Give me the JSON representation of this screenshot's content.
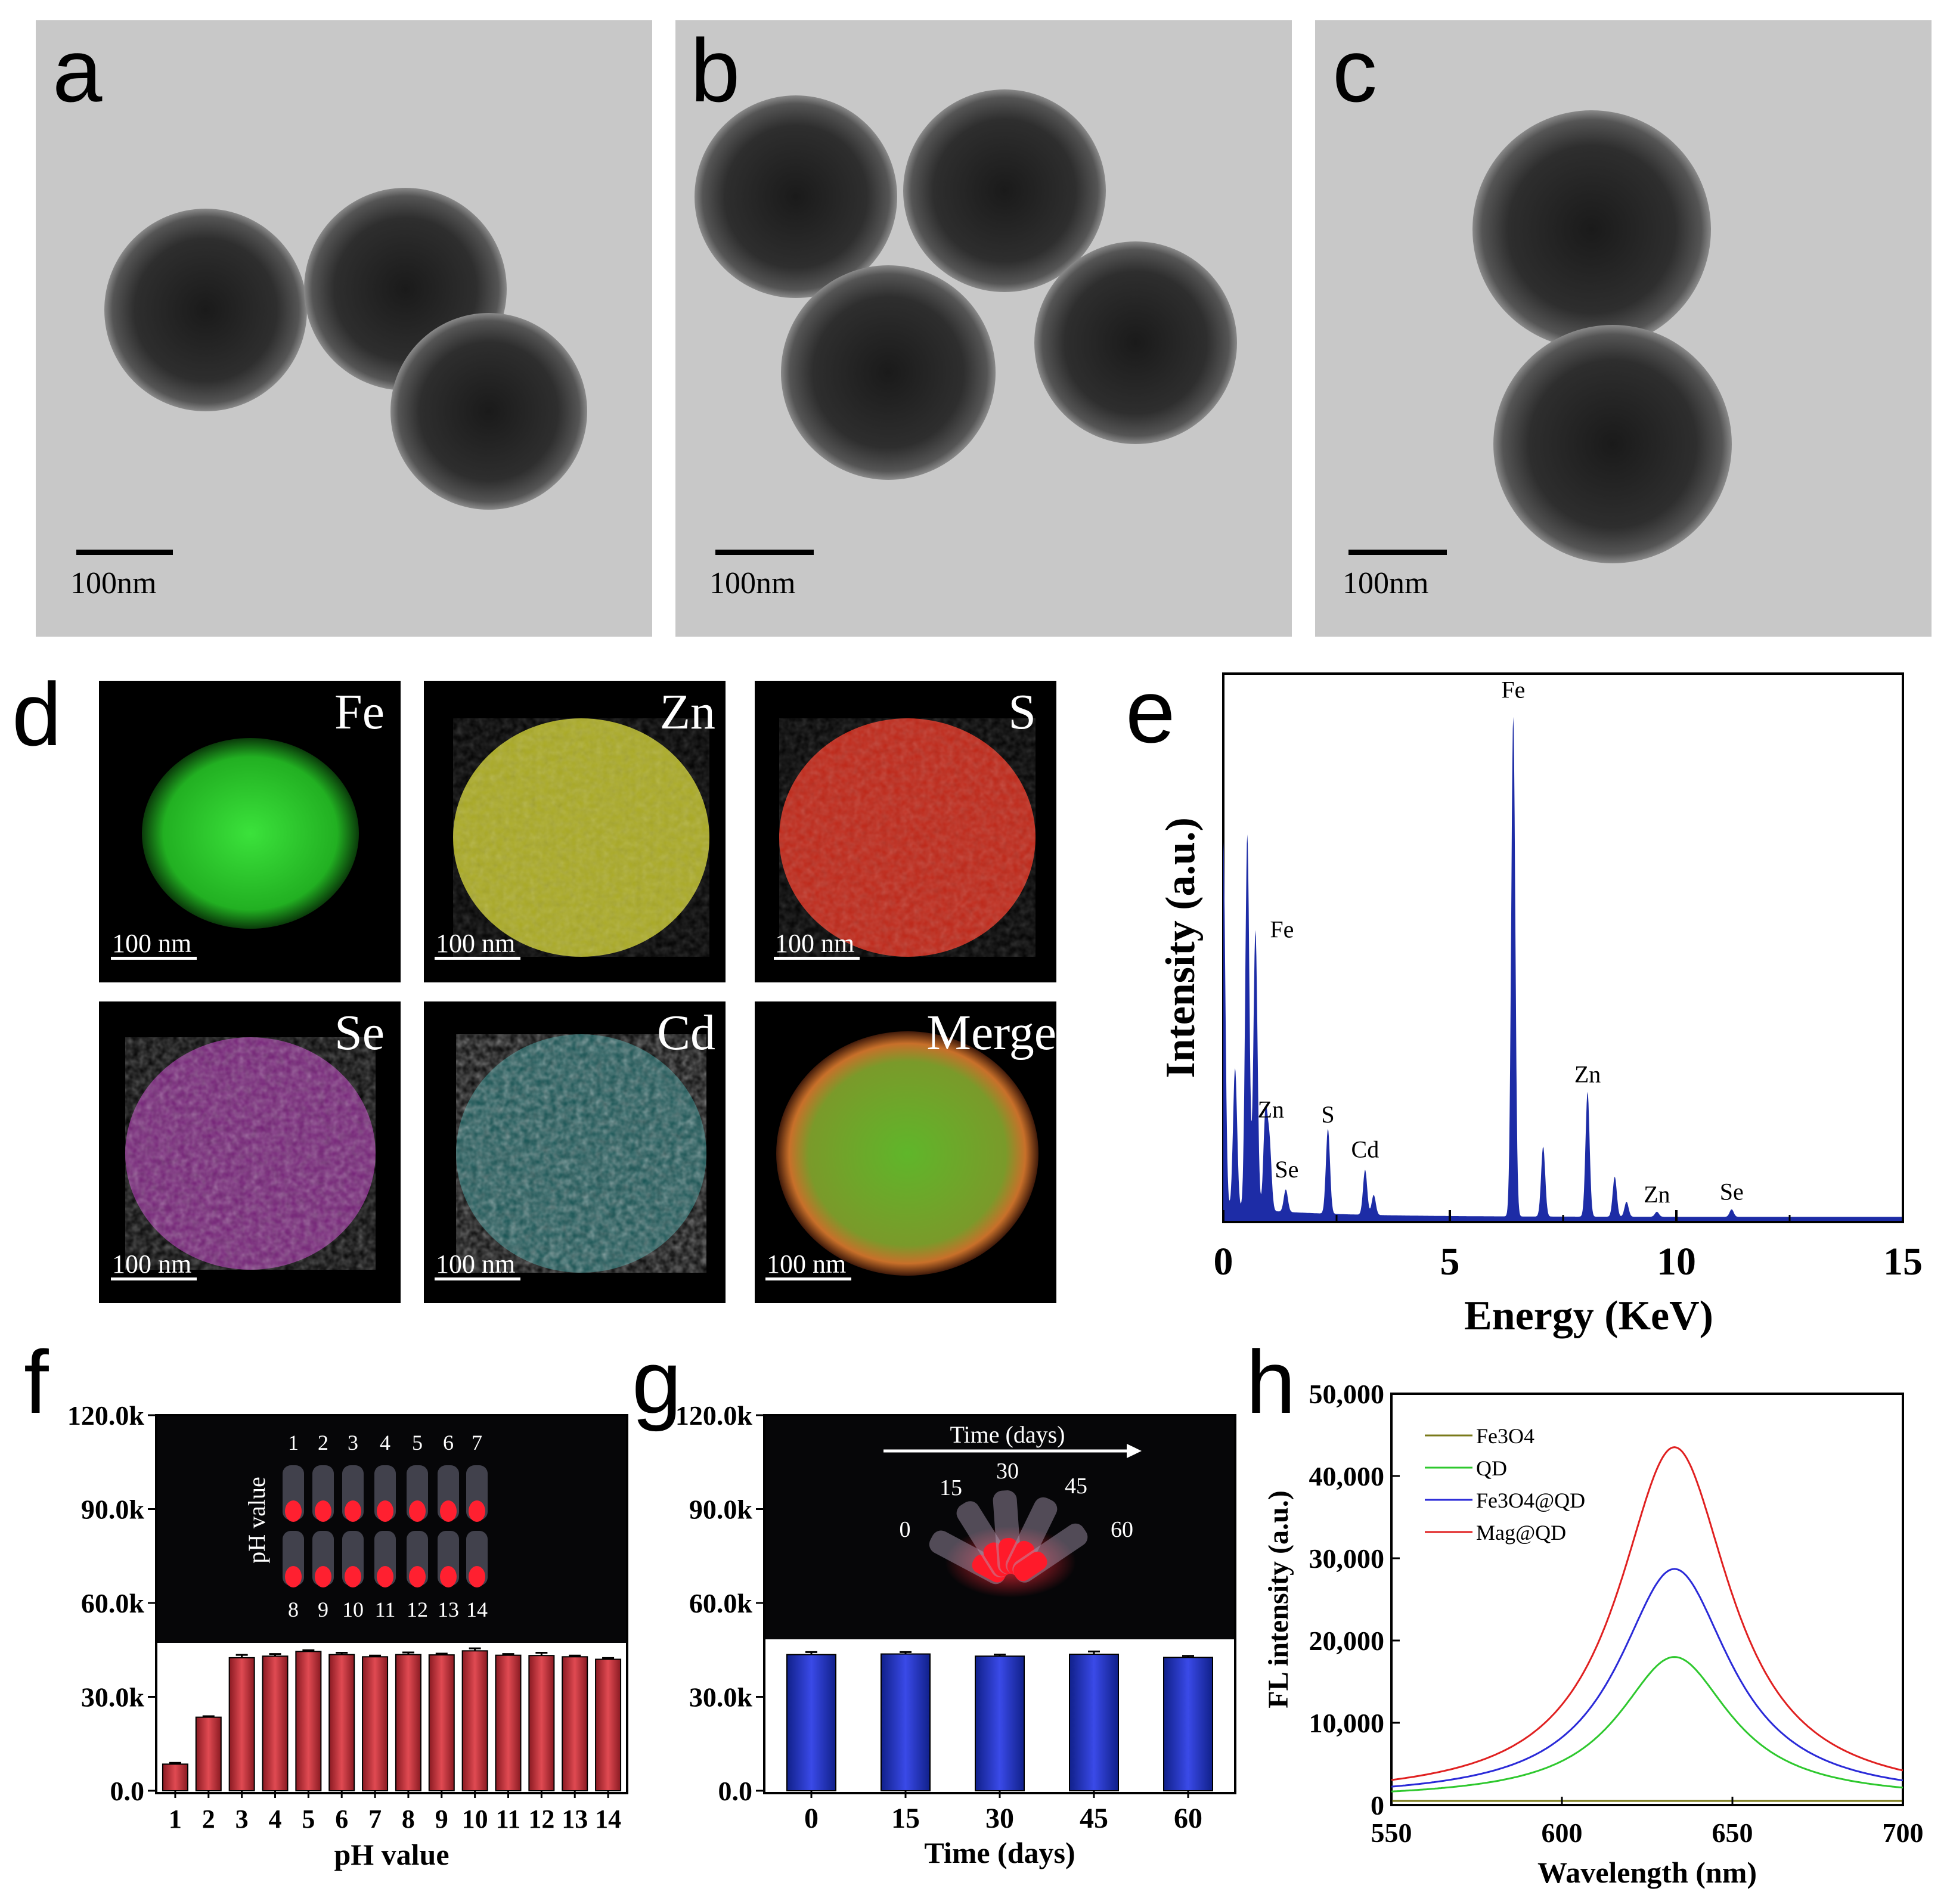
{
  "panel_letters": {
    "a": "a",
    "b": "b",
    "c": "c",
    "d": "d",
    "e": "e",
    "f": "f",
    "g": "g",
    "h": "h"
  },
  "tem": {
    "scalebar": "100nm"
  },
  "mapping": {
    "elements": [
      "Fe",
      "Zn",
      "S",
      "Se",
      "Cd",
      "Merge"
    ],
    "scalebar": "100 nm",
    "colors": {
      "Fe": "#2fd02f",
      "Zn": "#d8d82a",
      "S": "#e02a1a",
      "Se": "#c032c8",
      "Cd": "#30c8c8"
    }
  },
  "colors": {
    "eds": "#1d2ca6",
    "bar_red": "#c8323c",
    "bar_blue": "#2432c8",
    "axis": "#000000"
  },
  "chart_data": [
    {
      "id": "e",
      "type": "line",
      "title": "",
      "xlabel": "Energy (KeV)",
      "ylabel": "Intensity (a.u.)",
      "xlim": [
        0,
        15
      ],
      "xticks": [
        "0",
        "5",
        "10",
        "15"
      ],
      "peaks": [
        {
          "x": 0.0,
          "h": 0.73
        },
        {
          "x": 0.26,
          "h": 0.28
        },
        {
          "x": 0.53,
          "h": 0.75
        },
        {
          "x": 0.71,
          "h": 0.56
        },
        {
          "x": 0.93,
          "h": 0.19
        },
        {
          "x": 1.02,
          "h": 0.13
        },
        {
          "x": 1.38,
          "h": 0.045
        },
        {
          "x": 2.31,
          "h": 0.17
        },
        {
          "x": 3.13,
          "h": 0.09
        },
        {
          "x": 3.32,
          "h": 0.04
        },
        {
          "x": 6.4,
          "h": 1.0
        },
        {
          "x": 7.06,
          "h": 0.14
        },
        {
          "x": 8.04,
          "h": 0.25
        },
        {
          "x": 8.64,
          "h": 0.08
        },
        {
          "x": 8.9,
          "h": 0.03
        },
        {
          "x": 9.57,
          "h": 0.01
        },
        {
          "x": 11.22,
          "h": 0.015
        }
      ],
      "annotations": [
        {
          "label": "Fe",
          "x": 6.4,
          "h": 1.04
        },
        {
          "label": "Fe",
          "x": 0.9,
          "h": 0.56
        },
        {
          "label": "Zn",
          "x": 1.05,
          "h": 0.2
        },
        {
          "label": "Se",
          "x": 1.4,
          "h": 0.08
        },
        {
          "label": "S",
          "x": 2.31,
          "h": 0.19
        },
        {
          "label": "Cd",
          "x": 3.13,
          "h": 0.12
        },
        {
          "label": "Zn",
          "x": 8.04,
          "h": 0.27
        },
        {
          "label": "Zn",
          "x": 9.57,
          "h": 0.03
        },
        {
          "label": "Se",
          "x": 11.22,
          "h": 0.035
        }
      ]
    },
    {
      "id": "f",
      "type": "bar",
      "xlabel": "pH value",
      "ylabel": "",
      "ylim": [
        0,
        120000
      ],
      "yticks": [
        "0.0",
        "30.0k",
        "60.0k",
        "90.0k",
        "120.0k"
      ],
      "categories": [
        "1",
        "2",
        "3",
        "4",
        "5",
        "6",
        "7",
        "8",
        "9",
        "10",
        "11",
        "12",
        "13",
        "14"
      ],
      "values": [
        8500,
        23500,
        42500,
        43000,
        44500,
        43500,
        42800,
        43500,
        43400,
        44700,
        43300,
        43200,
        42800,
        42000
      ],
      "errors": [
        400,
        300,
        900,
        700,
        400,
        600,
        400,
        700,
        400,
        800,
        400,
        900,
        400,
        400
      ],
      "inset": {
        "label": "pH value",
        "top_numbers": [
          "1",
          "2",
          "3",
          "4",
          "5",
          "6",
          "7"
        ],
        "bottom_numbers": [
          "8",
          "9",
          "10",
          "11",
          "12",
          "13",
          "14"
        ]
      }
    },
    {
      "id": "g",
      "type": "bar",
      "xlabel": "Time (days)",
      "ylabel": "",
      "ylim": [
        0,
        120000
      ],
      "yticks": [
        "0.0",
        "30.0k",
        "60.0k",
        "90.0k",
        "120.0k"
      ],
      "categories": [
        "0",
        "15",
        "30",
        "45",
        "60"
      ],
      "values": [
        43500,
        43700,
        43000,
        43600,
        42600
      ],
      "errors": [
        800,
        600,
        500,
        900,
        500
      ],
      "inset": {
        "label": "Time (days)",
        "numbers": [
          "0",
          "15",
          "30",
          "45",
          "60"
        ]
      }
    },
    {
      "id": "h",
      "type": "line",
      "xlabel": "Wavelength (nm)",
      "ylabel": "FL intensity (a.u.)",
      "xlim": [
        550,
        700
      ],
      "ylim": [
        0,
        50000
      ],
      "xticks": [
        "550",
        "600",
        "650",
        "700"
      ],
      "yticks": [
        "0",
        "10,000",
        "20,000",
        "30,000",
        "40,000",
        "50,000"
      ],
      "series": [
        {
          "name": "Fe3O4",
          "color": "#7a7a1a",
          "peak": 0,
          "base": 500
        },
        {
          "name": "QD",
          "color": "#2ec82e",
          "peak": 17300,
          "base": 700
        },
        {
          "name": "Fe3O4@QD",
          "color": "#2a2ad8",
          "peak": 28000,
          "base": 700
        },
        {
          "name": "Mag@QD",
          "color": "#e02020",
          "peak": 42800,
          "base": 700
        }
      ],
      "peak_center": 633,
      "legend_labels": [
        "Fe3O4",
        "QD",
        "Fe3O4@QD",
        "Mag@QD"
      ]
    }
  ]
}
